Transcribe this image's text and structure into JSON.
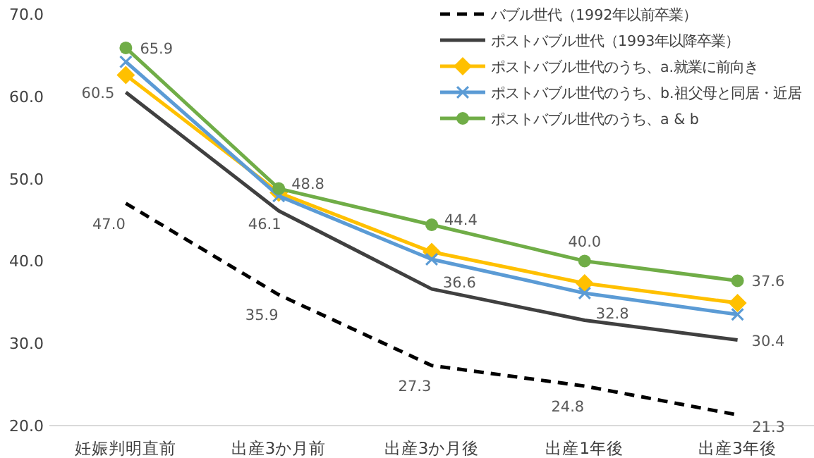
{
  "chart_data": {
    "type": "line",
    "categories": [
      "妊娠判明直前",
      "出産3か月前",
      "出産3か月後",
      "出産1年後",
      "出産3年後"
    ],
    "ylim": [
      20,
      70
    ],
    "yticks": [
      {
        "value": 20,
        "label": "20.0"
      },
      {
        "value": 30,
        "label": "30.0"
      },
      {
        "value": 40,
        "label": "40.0"
      },
      {
        "value": 50,
        "label": "50.0"
      },
      {
        "value": 60,
        "label": "60.0"
      },
      {
        "value": 70,
        "label": "70.0"
      }
    ],
    "grid": false,
    "legend": "top right",
    "series": [
      {
        "name": "バブル世代（1992年以前卒業）",
        "color": "#000000",
        "line_style": "dashed",
        "marker": "none",
        "values": [
          47.0,
          35.9,
          27.3,
          24.8,
          21.3
        ],
        "value_labels": [
          "47.0",
          "35.9",
          "27.3",
          "24.8",
          "21.3"
        ]
      },
      {
        "name": "ポストバブル世代（1993年以降卒業）",
        "color": "#404040",
        "line_style": "solid",
        "marker": "none",
        "values": [
          60.5,
          46.1,
          36.6,
          32.8,
          30.4
        ],
        "value_labels": [
          "60.5",
          "46.1",
          "36.6",
          "32.8",
          "30.4"
        ]
      },
      {
        "name": "ポストバブル世代のうち、a.就業に前向き",
        "color": "#ffc000",
        "line_style": "solid",
        "marker": "diamond",
        "values": [
          62.6,
          48.3,
          41.1,
          37.3,
          34.9
        ]
      },
      {
        "name": "ポストバブル世代のうち、b.祖父母と同居・近居",
        "color": "#5b9bd5",
        "line_style": "solid",
        "marker": "cross",
        "values": [
          64.2,
          47.9,
          40.2,
          36.1,
          33.5
        ]
      },
      {
        "name": "ポストバブル世代のうち、a & b",
        "color": "#70ad47",
        "line_style": "solid",
        "marker": "circle",
        "values": [
          65.9,
          48.8,
          44.4,
          40.0,
          37.6
        ],
        "value_labels": [
          "65.9",
          "48.8",
          "44.4",
          "40.0",
          "37.6"
        ]
      }
    ]
  }
}
